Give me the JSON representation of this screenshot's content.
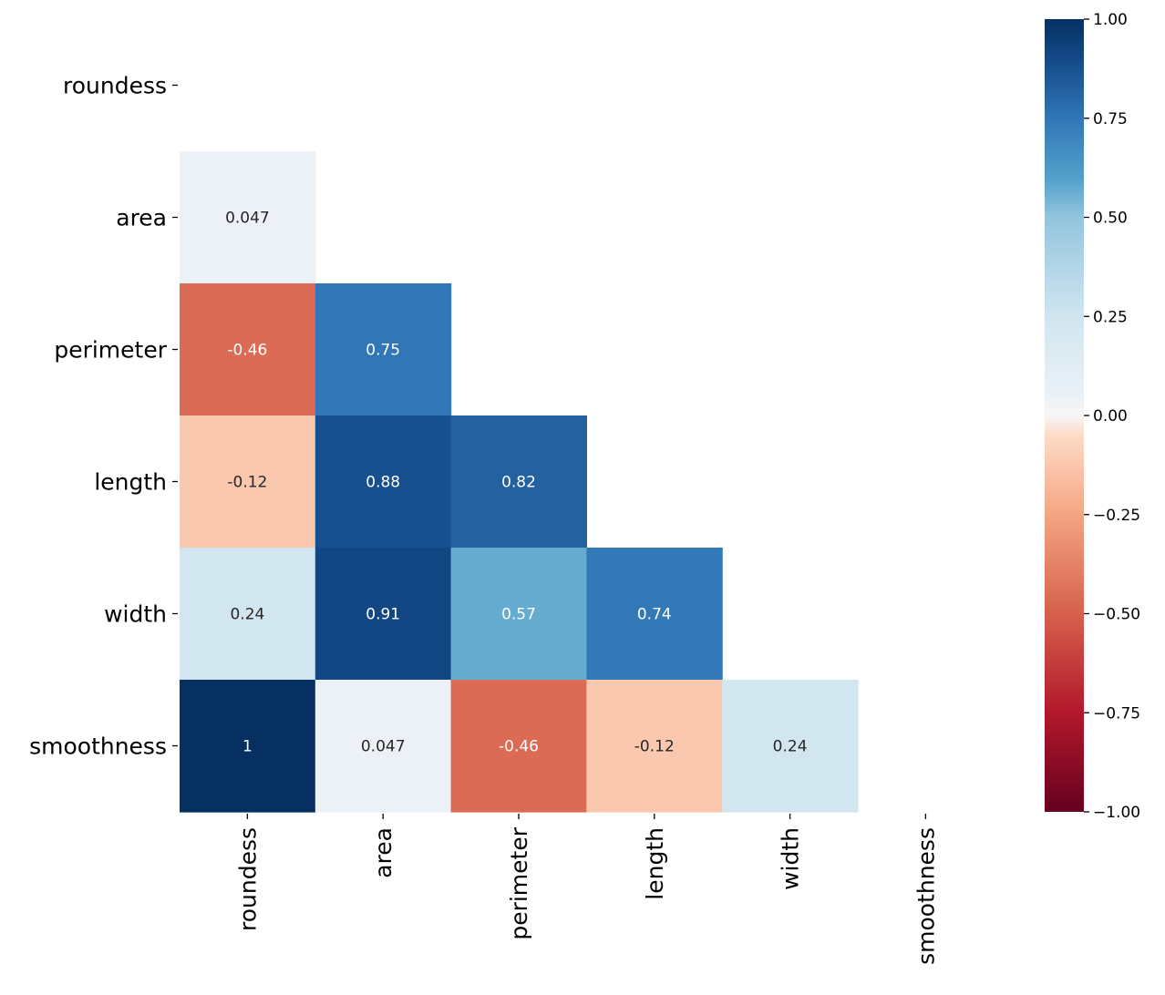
{
  "chart_data": {
    "type": "heatmap",
    "title": "",
    "xlabel": "",
    "ylabel": "",
    "variables": [
      "roundess",
      "area",
      "perimeter",
      "length",
      "width",
      "smoothness"
    ],
    "mask": "upper-triangle-including-diagonal",
    "values": [
      [
        null,
        null,
        null,
        null,
        null,
        null
      ],
      [
        0.047,
        null,
        null,
        null,
        null,
        null
      ],
      [
        -0.46,
        0.75,
        null,
        null,
        null,
        null
      ],
      [
        -0.12,
        0.88,
        0.82,
        null,
        null,
        null
      ],
      [
        0.24,
        0.91,
        0.57,
        0.74,
        null,
        null
      ],
      [
        1,
        0.047,
        -0.46,
        -0.12,
        0.24,
        null
      ]
    ],
    "annotations": [
      [
        "",
        "",
        "",
        "",
        "",
        ""
      ],
      [
        "0.047",
        "",
        "",
        "",
        "",
        ""
      ],
      [
        "-0.46",
        "0.75",
        "",
        "",
        "",
        ""
      ],
      [
        "-0.12",
        "0.88",
        "0.82",
        "",
        "",
        ""
      ],
      [
        "0.24",
        "0.91",
        "0.57",
        "0.74",
        "",
        ""
      ],
      [
        "1",
        "0.047",
        "-0.46",
        "-0.12",
        "0.24",
        ""
      ]
    ],
    "colormap": "RdBu",
    "vmin": -1,
    "vmax": 1,
    "colorbar": {
      "ticks": [
        1,
        0.75,
        0.5,
        0.25,
        0,
        -0.25,
        -0.5,
        -0.75,
        -1
      ],
      "tick_labels": [
        "1.00",
        "0.75",
        "0.50",
        "0.25",
        "0.00",
        "−0.25",
        "−0.50",
        "−0.75",
        "−1.00"
      ]
    }
  }
}
